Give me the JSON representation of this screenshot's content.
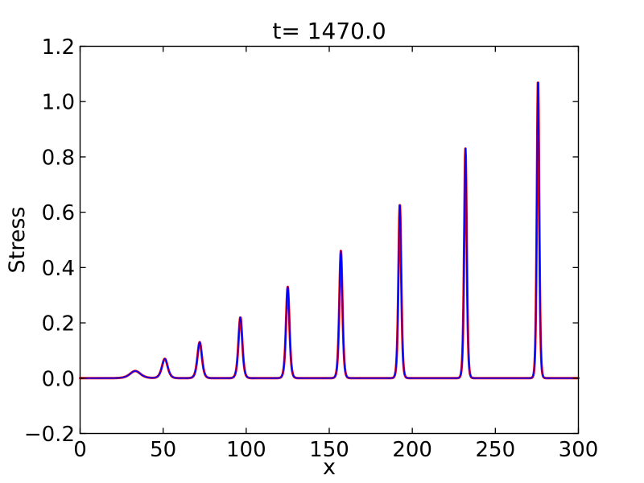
{
  "chart_data": {
    "type": "line",
    "title": "t= 1470.0",
    "xlabel": "x",
    "ylabel": "Stress",
    "xlim": [
      0,
      300
    ],
    "ylim": [
      -0.2,
      1.2
    ],
    "grid": false,
    "legend": false,
    "xticks": [
      {
        "value": 0,
        "label": "0"
      },
      {
        "value": 50,
        "label": "50"
      },
      {
        "value": 100,
        "label": "100"
      },
      {
        "value": 150,
        "label": "150"
      },
      {
        "value": 200,
        "label": "200"
      },
      {
        "value": 250,
        "label": "250"
      },
      {
        "value": 300,
        "label": "300"
      }
    ],
    "yticks": [
      {
        "value": -0.2,
        "label": "−0.2"
      },
      {
        "value": 0.0,
        "label": "0.0"
      },
      {
        "value": 0.2,
        "label": "0.2"
      },
      {
        "value": 0.4,
        "label": "0.4"
      },
      {
        "value": 0.6,
        "label": "0.6"
      },
      {
        "value": 0.8,
        "label": "0.8"
      },
      {
        "value": 1.0,
        "label": "1.0"
      },
      {
        "value": 1.2,
        "label": "1.2"
      }
    ],
    "series": [
      {
        "name": "underlay-curve",
        "color": "#ff0000"
      },
      {
        "name": "overlay-curve",
        "color": "#0000ff"
      }
    ],
    "curve_model": "baseline 0 plus sum of sech^2 pulses (soliton train, both series nearly identical)",
    "peaks": [
      {
        "x": 33.2,
        "height": 0.026,
        "width": 4.2
      },
      {
        "x": 51.0,
        "height": 0.07,
        "width": 2.3
      },
      {
        "x": 72.0,
        "height": 0.13,
        "width": 1.8
      },
      {
        "x": 96.5,
        "height": 0.22,
        "width": 1.55
      },
      {
        "x": 125.0,
        "height": 0.33,
        "width": 1.38
      },
      {
        "x": 157.0,
        "height": 0.46,
        "width": 1.25
      },
      {
        "x": 192.5,
        "height": 0.63,
        "width": 1.12
      },
      {
        "x": 232.0,
        "height": 0.83,
        "width": 1.03
      },
      {
        "x": 275.7,
        "height": 1.08,
        "width": 0.95
      }
    ]
  },
  "colors": {
    "axis": "#000000",
    "background": "#ffffff"
  }
}
